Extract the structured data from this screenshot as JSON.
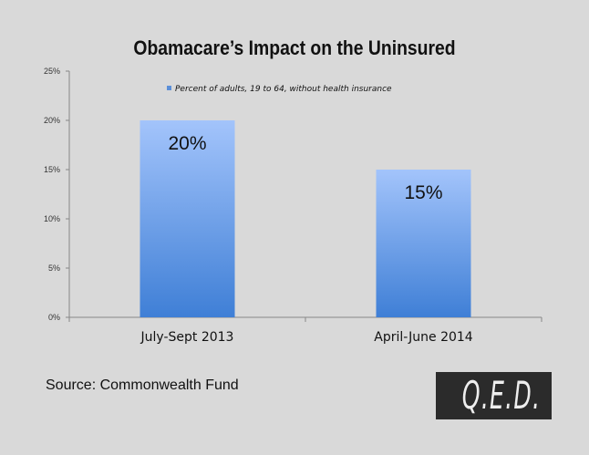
{
  "chart_data": {
    "type": "bar",
    "title": "Obamacare’s Impact on the Uninsured",
    "categories": [
      "July-Sept 2013",
      "April-June 2014"
    ],
    "series": [
      {
        "name": "Percent of adults, 19 to 64, without health insurance",
        "values": [
          20,
          15
        ]
      }
    ],
    "data_labels": [
      "20%",
      "15%"
    ],
    "yticks": [
      "0%",
      "5%",
      "10%",
      "15%",
      "20%",
      "25%"
    ],
    "ylim": [
      0,
      25
    ],
    "xlabel": "",
    "ylabel": "",
    "grid": false,
    "legend_position": "top",
    "colors": {
      "bar_top": "#a3c4fb",
      "bar_bottom": "#3f7fd6",
      "legend_swatch": "#5b8fd8"
    }
  },
  "source": "Source: Commonwealth Fund",
  "logo_text": "Q.E.D."
}
